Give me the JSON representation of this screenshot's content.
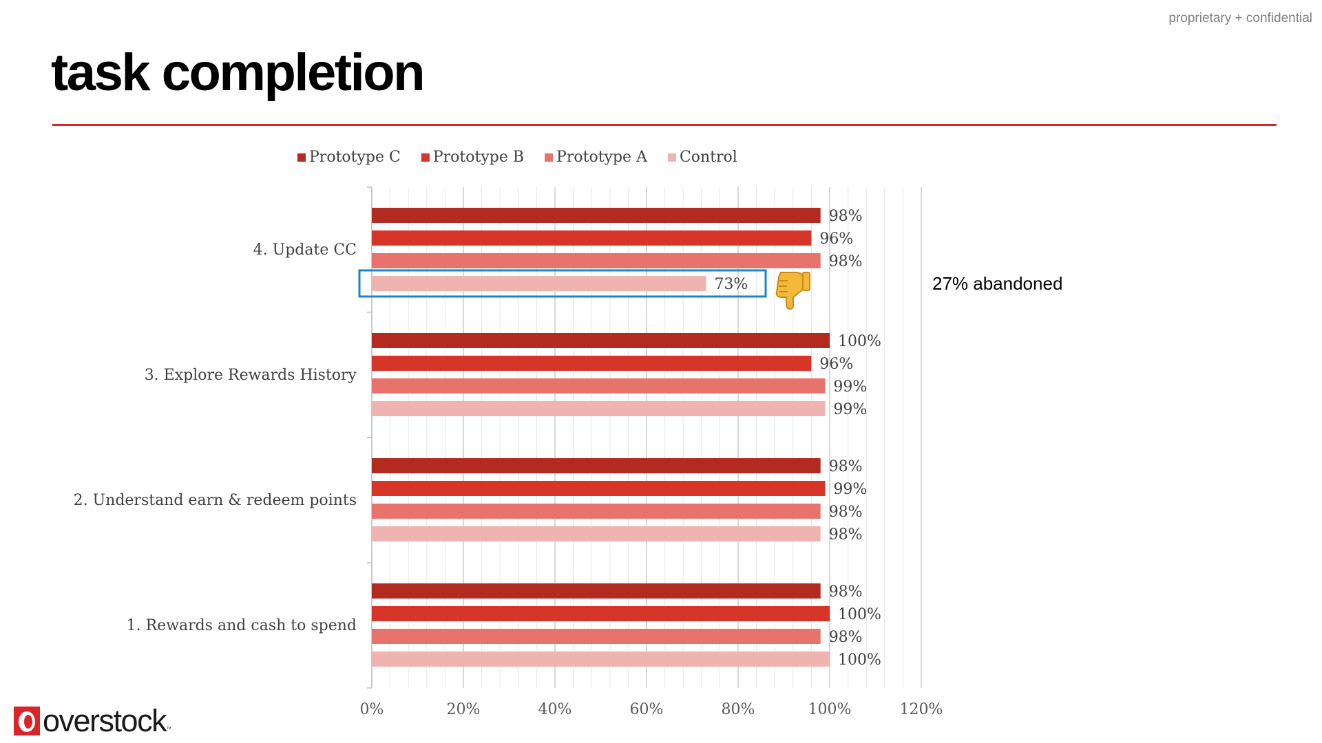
{
  "header": {
    "confidential": "proprietary + confidential",
    "title": "task completion"
  },
  "annotations": {
    "abandoned_note": "27% abandoned",
    "thumb_icon": "thumbs-down-icon"
  },
  "logo": {
    "text": "overstock",
    "tm": "™"
  },
  "colors": {
    "rule": "#d9252a",
    "highlight_box": "#1a84c7"
  },
  "chart_data": {
    "type": "bar",
    "orientation": "horizontal",
    "categories": [
      "4. Update CC",
      "3. Explore Rewards History",
      "2. Understand earn & redeem points",
      "1. Rewards and cash to spend"
    ],
    "series": [
      {
        "name": "Prototype C",
        "color": "#b22a20",
        "values": [
          98,
          100,
          98,
          98
        ]
      },
      {
        "name": "Prototype B",
        "color": "#d73527",
        "values": [
          96,
          96,
          99,
          100
        ]
      },
      {
        "name": "Prototype A",
        "color": "#e8736c",
        "values": [
          98,
          99,
          98,
          98
        ]
      },
      {
        "name": "Control",
        "color": "#efb3b0",
        "values": [
          73,
          99,
          98,
          100
        ]
      }
    ],
    "data_labels": [
      [
        "98%",
        "96%",
        "98%",
        "73%"
      ],
      [
        "100%",
        "96%",
        "99%",
        "99%"
      ],
      [
        "98%",
        "99%",
        "98%",
        "98%"
      ],
      [
        "98%",
        "100%",
        "98%",
        "100%"
      ]
    ],
    "x_ticks": [
      "0%",
      "20%",
      "40%",
      "60%",
      "80%",
      "100%",
      "120%"
    ],
    "xlim": [
      0,
      120
    ],
    "grid": true,
    "legend_position": "top",
    "highlight": {
      "category": "4. Update CC",
      "series": "Control"
    }
  }
}
